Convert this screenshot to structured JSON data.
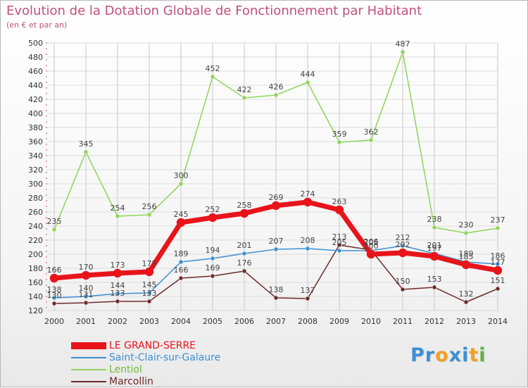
{
  "header": {
    "title": "Evolution de la Dotation Globale de Fonctionnement par Habitant",
    "subtitle": "(en € et par an)"
  },
  "brand": {
    "text": "Proxiti",
    "letters": [
      "P",
      "r",
      "o",
      "x",
      "i",
      "t",
      "i"
    ],
    "colors": [
      "#3c8fd6",
      "#3c8fd6",
      "#f0a020",
      "#3c8fd6",
      "#3c8fd6",
      "#f0a020",
      "#60b040"
    ]
  },
  "colors": {
    "title": "#c0507e",
    "grid_v": "#c8c8c8",
    "grid_h": "#dcdcdc",
    "axis_text": "#333333",
    "value_text": "#444444"
  },
  "chart_data": {
    "type": "line",
    "title": "Evolution de la Dotation Globale de Fonctionnement par Habitant",
    "subtitle": "(en € et par an)",
    "xlabel": "",
    "ylabel": "",
    "x": [
      "2000",
      "2001",
      "2002",
      "2003",
      "2004",
      "2005",
      "2006",
      "2007",
      "2008",
      "2009",
      "2010",
      "2011",
      "2012",
      "2013",
      "2014"
    ],
    "ylim": [
      120,
      500
    ],
    "yticks": [
      120,
      140,
      160,
      180,
      200,
      220,
      240,
      260,
      280,
      300,
      320,
      340,
      360,
      380,
      400,
      420,
      440,
      460,
      480,
      500
    ],
    "grid": true,
    "legend_position": "bottom-left",
    "series": [
      {
        "name": "Marcollin",
        "color": "#6e2a2a",
        "width": 1.5,
        "marker_r": 3,
        "values": [
          130,
          131,
          133,
          133,
          166,
          169,
          176,
          138,
          137,
          213,
          206,
          150,
          153,
          132,
          151
        ]
      },
      {
        "name": "Saint-Clair-sur-Galaure",
        "color": "#3d8fd1",
        "width": 1.5,
        "marker_r": 3,
        "values": [
          138,
          140,
          144,
          145,
          189,
          194,
          201,
          207,
          208,
          205,
          205,
          212,
          201,
          189,
          186
        ]
      },
      {
        "name": "Lentiol",
        "color": "#8ed45a",
        "width": 1.5,
        "marker_r": 3,
        "values": [
          235,
          345,
          254,
          256,
          300,
          452,
          422,
          426,
          444,
          359,
          362,
          487,
          238,
          230,
          237
        ]
      },
      {
        "name": "LE GRAND-SERRE",
        "color": "#e8141a",
        "width": 7,
        "marker_r": 6,
        "values": [
          166,
          170,
          173,
          175,
          245,
          252,
          258,
          269,
          274,
          263,
          200,
          202,
          197,
          185,
          177
        ]
      }
    ],
    "legend_order": [
      "LE GRAND-SERRE",
      "Saint-Clair-sur-Galaure",
      "Lentiol",
      "Marcollin"
    ]
  }
}
